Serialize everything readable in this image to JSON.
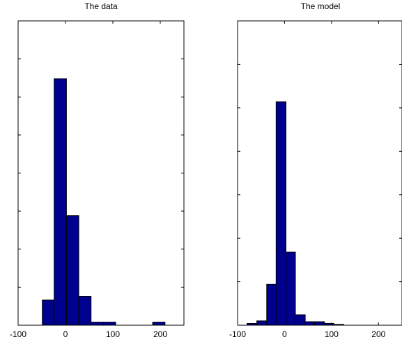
{
  "colors": {
    "bar_fill": "#00008f",
    "bar_edge": "#000000",
    "axes": "#000000",
    "background": "#ffffff"
  },
  "chart_data": [
    {
      "type": "bar",
      "title": "The data",
      "xlabel": "",
      "ylabel": "",
      "xlim": [
        -100,
        250
      ],
      "ylim": [
        0,
        0.4
      ],
      "xticks": [
        -100,
        0,
        100,
        200
      ],
      "xtick_labels": [
        "-100",
        "0",
        "100",
        "200"
      ],
      "yticks": [
        0.05,
        0.1,
        0.15,
        0.2,
        0.25,
        0.3,
        0.35
      ],
      "grid": false,
      "bins": [
        {
          "x0": -49,
          "x1": -24,
          "value": 0.033
        },
        {
          "x0": -24,
          "x1": 2,
          "value": 0.324
        },
        {
          "x0": 2,
          "x1": 28,
          "value": 0.144
        },
        {
          "x0": 28,
          "x1": 54,
          "value": 0.038
        },
        {
          "x0": 54,
          "x1": 80,
          "value": 0.004
        },
        {
          "x0": 80,
          "x1": 106,
          "value": 0.004
        },
        {
          "x0": 106,
          "x1": 132,
          "value": 0
        },
        {
          "x0": 132,
          "x1": 158,
          "value": 0
        },
        {
          "x0": 158,
          "x1": 184,
          "value": 0
        },
        {
          "x0": 184,
          "x1": 210,
          "value": 0.004
        }
      ]
    },
    {
      "type": "bar",
      "title": "The model",
      "xlabel": "",
      "ylabel": "",
      "xlim": [
        -100,
        250
      ],
      "ylim": [
        0,
        0.35
      ],
      "xticks": [
        -100,
        0,
        100,
        200
      ],
      "xtick_labels": [
        "-100",
        "0",
        "100",
        "200"
      ],
      "yticks": [
        0.05,
        0.1,
        0.15,
        0.2,
        0.25,
        0.3
      ],
      "grid": false,
      "bins": [
        {
          "x0": -80,
          "x1": -59,
          "value": 0.002
        },
        {
          "x0": -59,
          "x1": -38,
          "value": 0.005
        },
        {
          "x0": -38,
          "x1": -18,
          "value": 0.047
        },
        {
          "x0": -18,
          "x1": 3,
          "value": 0.257
        },
        {
          "x0": 3,
          "x1": 23,
          "value": 0.084
        },
        {
          "x0": 23,
          "x1": 44,
          "value": 0.012
        },
        {
          "x0": 44,
          "x1": 64,
          "value": 0.004
        },
        {
          "x0": 64,
          "x1": 85,
          "value": 0.004
        },
        {
          "x0": 85,
          "x1": 105,
          "value": 0.002
        },
        {
          "x0": 105,
          "x1": 126,
          "value": 0.001
        }
      ]
    }
  ]
}
